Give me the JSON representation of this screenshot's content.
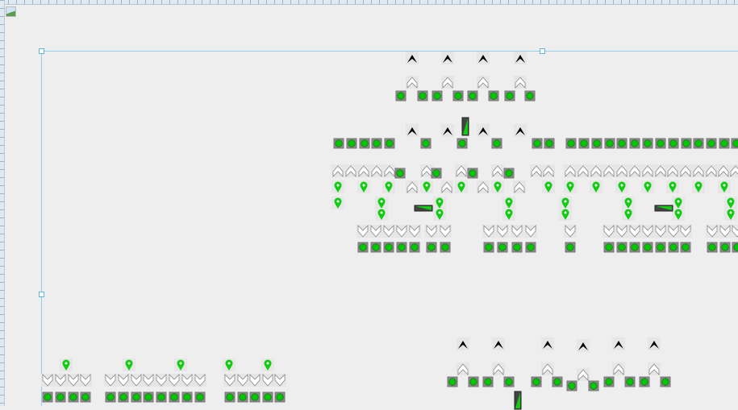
{
  "canvas": {
    "background": "#eeeeee",
    "selection_color": "#8fd0ee"
  },
  "icons": {
    "black_chevron_up": {
      "name": "chevron-up-black-icon",
      "fill": "#000000"
    },
    "white_chevron_up": {
      "name": "chevron-up-white-icon",
      "fill": "#ffffff"
    },
    "white_chevron_down": {
      "name": "chevron-down-white-icon",
      "fill": "#ffffff"
    },
    "status_led": {
      "name": "status-led-icon",
      "fill": "#00c800",
      "frame": "#777777"
    },
    "map_pin": {
      "name": "map-pin-icon",
      "fill": "#11cc11"
    },
    "level_bar_vertical": {
      "name": "level-bar-vertical-icon",
      "fill": "#11cc11"
    },
    "level_bar_horizontal": {
      "name": "level-bar-horizontal-icon",
      "fill": "#11cc11"
    }
  }
}
